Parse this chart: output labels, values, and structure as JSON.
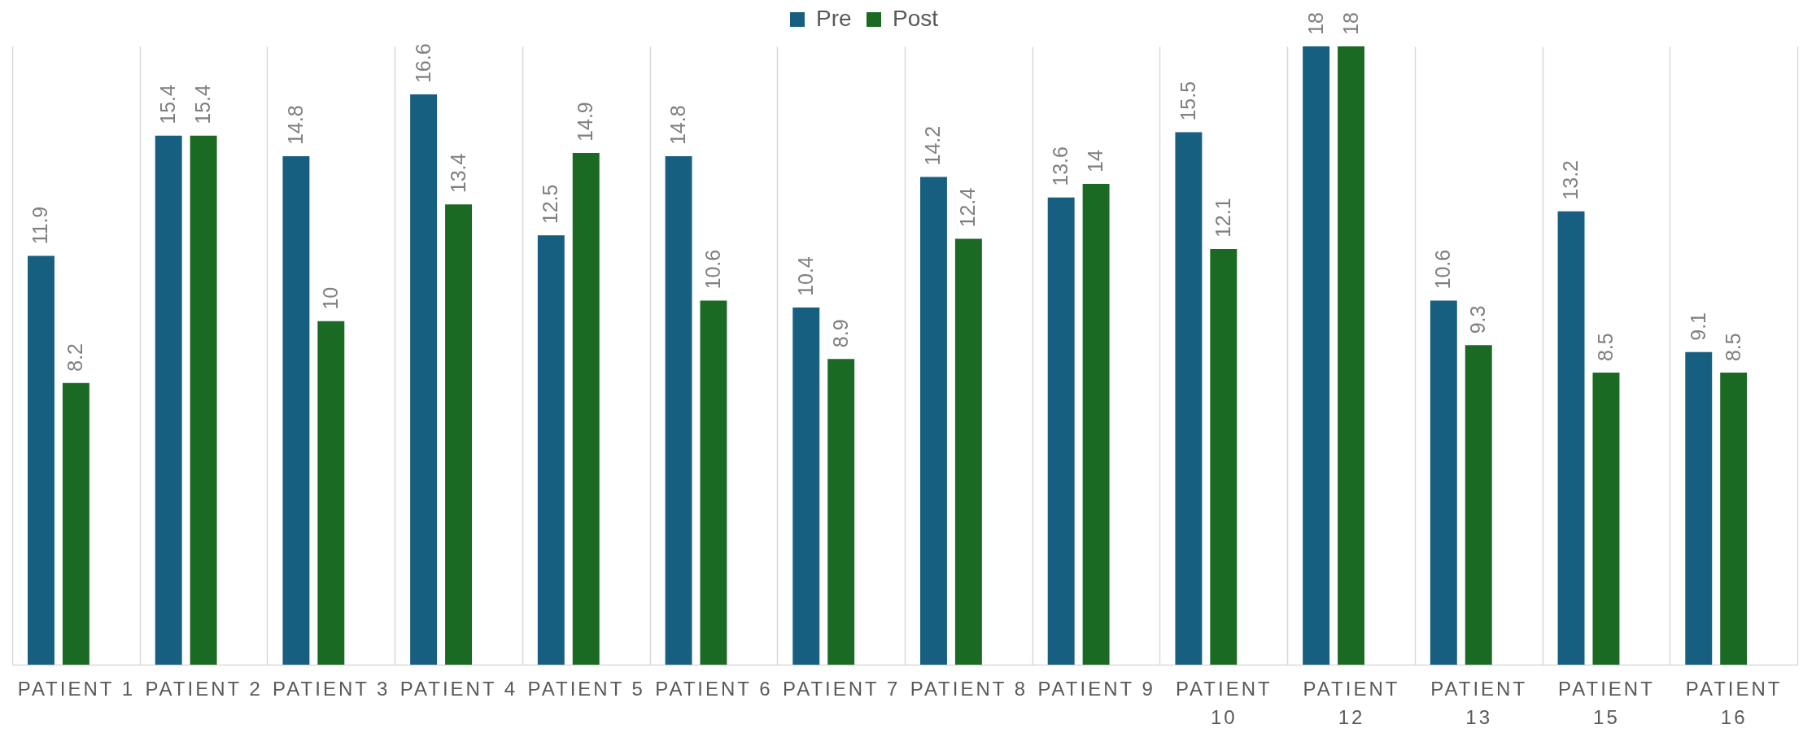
{
  "chart_data": {
    "type": "bar",
    "categories": [
      "PATIENT 1",
      "PATIENT 2",
      "PATIENT 3",
      "PATIENT 4",
      "PATIENT 5",
      "PATIENT 6",
      "PATIENT 7",
      "PATIENT 8",
      "PATIENT 9",
      "PATIENT 10",
      "PATIENT 12",
      "PATIENT 13",
      "PATIENT 15",
      "PATIENT 16"
    ],
    "series": [
      {
        "name": "Pre",
        "color": "#175f81",
        "values": [
          11.9,
          15.4,
          14.8,
          16.6,
          12.5,
          14.8,
          10.4,
          14.2,
          13.6,
          15.5,
          18,
          10.6,
          13.2,
          9.1
        ]
      },
      {
        "name": "Post",
        "color": "#1b6a24",
        "values": [
          8.2,
          15.4,
          10,
          13.4,
          14.9,
          10.6,
          8.9,
          12.4,
          14,
          12.1,
          18,
          9.3,
          8.5,
          8.5
        ]
      }
    ],
    "data_labels": true,
    "legend": "top",
    "grid": "x",
    "tick_labels": "x"
  }
}
